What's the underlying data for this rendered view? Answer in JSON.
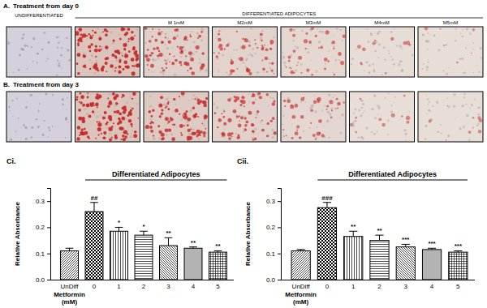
{
  "panels": [
    {
      "label": "A.",
      "title": "Treatment from day 0",
      "header_left": "UNDIFFERENTIATED",
      "header_group": "DIFFERENTIATED ADIPOCYTES",
      "image_labels": [
        null,
        null,
        "M 1mM",
        "M2mM",
        "M3mM",
        "M4mM",
        "M5mM"
      ]
    },
    {
      "label": "B.",
      "title": "Treatment from day 3"
    }
  ],
  "chart_data": [
    {
      "type": "bar",
      "panel_label": "Ci.",
      "title": "Differentiated Adipocytes",
      "ylabel": "Relative Absorbance",
      "xlabel": [
        "Metformin",
        "(mM)"
      ],
      "categories": [
        "UnDiff",
        "0",
        "1",
        "2",
        "3",
        "4",
        "5"
      ],
      "values": [
        0.11,
        0.26,
        0.185,
        0.17,
        0.13,
        0.12,
        0.105
      ],
      "errors": [
        0.01,
        0.035,
        0.015,
        0.015,
        0.03,
        0.005,
        0.005
      ],
      "annotations": [
        null,
        "##",
        "*",
        "*",
        "**",
        "**",
        "**"
      ],
      "color": "#000000",
      "ylim": [
        0,
        0.35
      ],
      "yticks": [
        {
          "value": 0,
          "label": "0.0"
        },
        0.1,
        0.2,
        0.3
      ]
    },
    {
      "type": "bar",
      "panel_label": "Cii.",
      "title": "Differentiated Adipocytes",
      "ylabel": "Relative Absorbance",
      "xlabel": [
        "Metformin",
        "(mM)"
      ],
      "categories": [
        "UnDiff",
        "0",
        "1",
        "2",
        "3",
        "4",
        "5"
      ],
      "values": [
        0.11,
        0.275,
        0.165,
        0.15,
        0.125,
        0.115,
        0.105
      ],
      "errors": [
        0.005,
        0.02,
        0.02,
        0.02,
        0.01,
        0.005,
        0.005
      ],
      "annotations": [
        null,
        "###",
        "**",
        "**",
        "***",
        "***",
        "***"
      ],
      "color": "#000000",
      "ylim": [
        0,
        0.35
      ],
      "yticks": [
        {
          "value": 0,
          "label": "0.0"
        },
        0.1,
        0.2,
        0.3
      ]
    }
  ]
}
